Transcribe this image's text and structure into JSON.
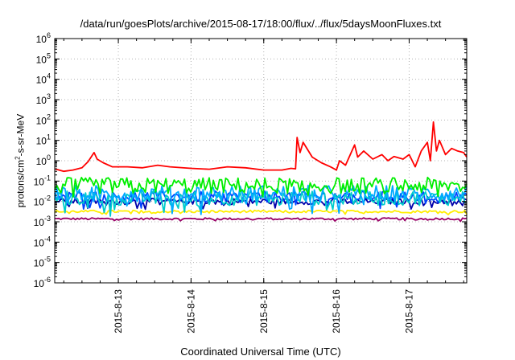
{
  "chart_data": {
    "type": "line",
    "title": "/data/run/goesPlots/archive/2015-08-17/18:00/flux/../flux/5daysMoonFluxes.txt",
    "xlabel": "Coordinated Universal Time (UTC)",
    "ylabel": "protons/cm²-s-sr-MeV",
    "ylabel_prefix": "protons/cm",
    "ylabel_sup": "2",
    "ylabel_suffix": "-s-sr-MeV",
    "y_scale": "log",
    "ylim": [
      1e-06,
      1000000.0
    ],
    "y_tick_labels": [
      {
        "base": "10",
        "exp": "-6"
      },
      {
        "base": "10",
        "exp": "-5"
      },
      {
        "base": "10",
        "exp": "-4"
      },
      {
        "base": "10",
        "exp": "-3"
      },
      {
        "base": "10",
        "exp": "-2"
      },
      {
        "base": "10",
        "exp": "-1"
      },
      {
        "base": "10",
        "exp": "0"
      },
      {
        "base": "10",
        "exp": "1"
      },
      {
        "base": "10",
        "exp": "2"
      },
      {
        "base": "10",
        "exp": "3"
      },
      {
        "base": "10",
        "exp": "4"
      },
      {
        "base": "10",
        "exp": "5"
      },
      {
        "base": "10",
        "exp": "6"
      }
    ],
    "xlim": [
      "2015-08-12 03:00",
      "2015-08-17 19:00"
    ],
    "x_ticks": [
      "2015-8-13",
      "2015-8-14",
      "2015-8-15",
      "2015-8-16",
      "2015-8-17"
    ],
    "grid": true,
    "legend": "none",
    "series": [
      {
        "color": "#ff0000",
        "points": [
          [
            "2015-08-12 03:00",
            0.4
          ],
          [
            "2015-08-12 06:00",
            0.3
          ],
          [
            "2015-08-12 09:00",
            0.35
          ],
          [
            "2015-08-12 12:00",
            0.45
          ],
          [
            "2015-08-12 14:00",
            0.9
          ],
          [
            "2015-08-12 16:00",
            2.5
          ],
          [
            "2015-08-12 17:00",
            1.2
          ],
          [
            "2015-08-12 19:00",
            0.8
          ],
          [
            "2015-08-12 22:00",
            0.5
          ],
          [
            "2015-08-13 03:00",
            0.5
          ],
          [
            "2015-08-13 08:00",
            0.45
          ],
          [
            "2015-08-13 13:00",
            0.6
          ],
          [
            "2015-08-13 17:00",
            0.5
          ],
          [
            "2015-08-14 00:00",
            0.42
          ],
          [
            "2015-08-14 06:00",
            0.38
          ],
          [
            "2015-08-14 12:00",
            0.5
          ],
          [
            "2015-08-14 18:00",
            0.45
          ],
          [
            "2015-08-15 00:00",
            0.35
          ],
          [
            "2015-08-15 06:00",
            0.35
          ],
          [
            "2015-08-15 09:00",
            0.42
          ],
          [
            "2015-08-15 10:30",
            0.4
          ],
          [
            "2015-08-15 11:00",
            14
          ],
          [
            "2015-08-15 12:00",
            2.5
          ],
          [
            "2015-08-15 13:00",
            8
          ],
          [
            "2015-08-15 16:00",
            1.5
          ],
          [
            "2015-08-15 19:00",
            0.8
          ],
          [
            "2015-08-15 22:00",
            0.5
          ],
          [
            "2015-08-16 00:00",
            0.35
          ],
          [
            "2015-08-16 01:00",
            1.0
          ],
          [
            "2015-08-16 03:00",
            0.6
          ],
          [
            "2015-08-16 06:00",
            6
          ],
          [
            "2015-08-16 07:00",
            1.5
          ],
          [
            "2015-08-16 09:00",
            3
          ],
          [
            "2015-08-16 12:00",
            1.2
          ],
          [
            "2015-08-16 15:00",
            2
          ],
          [
            "2015-08-16 17:00",
            1.0
          ],
          [
            "2015-08-16 19:00",
            1.6
          ],
          [
            "2015-08-16 22:00",
            1.2
          ],
          [
            "2015-08-17 00:00",
            2
          ],
          [
            "2015-08-17 02:00",
            0.5
          ],
          [
            "2015-08-17 04:00",
            3
          ],
          [
            "2015-08-17 06:00",
            8
          ],
          [
            "2015-08-17 07:00",
            1.0
          ],
          [
            "2015-08-17 08:00",
            80
          ],
          [
            "2015-08-17 09:00",
            3
          ],
          [
            "2015-08-17 10:00",
            10
          ],
          [
            "2015-08-17 12:00",
            2
          ],
          [
            "2015-08-17 14:00",
            4
          ],
          [
            "2015-08-17 16:00",
            3
          ],
          [
            "2015-08-17 18:00",
            2.5
          ],
          [
            "2015-08-17 19:00",
            1.5
          ]
        ]
      },
      {
        "color": "#00ee00",
        "level": 0.06,
        "spread": 0.8
      },
      {
        "color": "#00aaff",
        "level": 0.025,
        "spread": 0.8
      },
      {
        "color": "#00cccc",
        "level": 0.015,
        "spread": 0.75
      },
      {
        "color": "#0044ff",
        "level": 0.018,
        "spread": 0.5
      },
      {
        "color": "#0000aa",
        "level": 0.01,
        "spread": 0.3
      },
      {
        "color": "#ffee00",
        "level": 0.0032,
        "spread": 0.12
      },
      {
        "color": "#990066",
        "level": 0.0014,
        "spread": 0.1
      }
    ]
  }
}
